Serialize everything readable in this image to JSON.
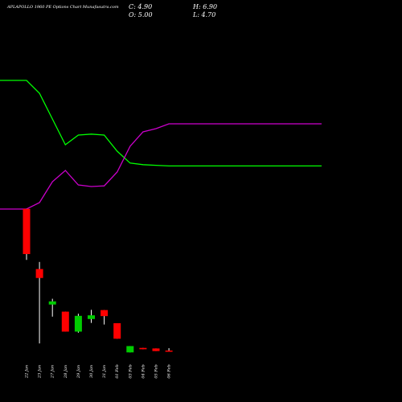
{
  "chart_data": {
    "type": "candlestick",
    "title": "APLAPOLLO 1960 PE Options Chart Munafasutra.com",
    "ohlc_labels": {
      "open": "O: 5.00",
      "high": "H: 6.90",
      "close": "C: 4.90",
      "low": "L: 4.70"
    },
    "dates": [
      "22 Jan",
      "23 Jan",
      "27 Jan",
      "28 Jan",
      "29 Jan",
      "30 Jan",
      "31 Jan",
      "01 Feb",
      "03 Feb",
      "04 Feb",
      "05 Feb",
      "06 Feb"
    ],
    "candles": [
      {
        "open": 122.4,
        "high": 122.4,
        "low": 103.0,
        "close": 105.2
      },
      {
        "open": 99.5,
        "high": 102.2,
        "low": 71.2,
        "close": 96.1
      },
      {
        "open": 86.0,
        "high": 88.2,
        "low": 81.4,
        "close": 87.2
      },
      {
        "open": 83.3,
        "high": 83.3,
        "low": 75.7,
        "close": 75.7
      },
      {
        "open": 75.7,
        "high": 82.5,
        "low": 75.3,
        "close": 81.7
      },
      {
        "open": 80.5,
        "high": 84.0,
        "low": 79.0,
        "close": 81.9
      },
      {
        "open": 83.9,
        "high": 83.9,
        "low": 78.4,
        "close": 81.6
      },
      {
        "open": 78.9,
        "high": 78.9,
        "low": 73.0,
        "close": 73.0
      },
      {
        "open": 67.8,
        "high": 70.2,
        "low": 67.8,
        "close": 70.2
      },
      {
        "open": 69.5,
        "high": 69.5,
        "low": 69.0,
        "close": 69.0
      },
      {
        "open": 69.3,
        "high": 69.3,
        "low": 68.3,
        "close": 68.3
      },
      {
        "open": 68.5,
        "high": 69.4,
        "low": 68.2,
        "close": 68.2
      }
    ],
    "green_line": [
      60,
      56,
      48,
      40,
      43,
      43.3,
      43.0,
      38,
      34.3,
      33.8,
      33.6,
      33.4
    ],
    "magenta_line": [
      20,
      22,
      28.5,
      32,
      27.5,
      27,
      27.2,
      31.5,
      39.5,
      44,
      45,
      46.5
    ],
    "colors": {
      "up": "#00cc00",
      "down": "#ff0000",
      "green_line": "#00ff00",
      "magenta_line": "#cc00cc",
      "background": "#000000",
      "text": "#ffffff"
    }
  }
}
